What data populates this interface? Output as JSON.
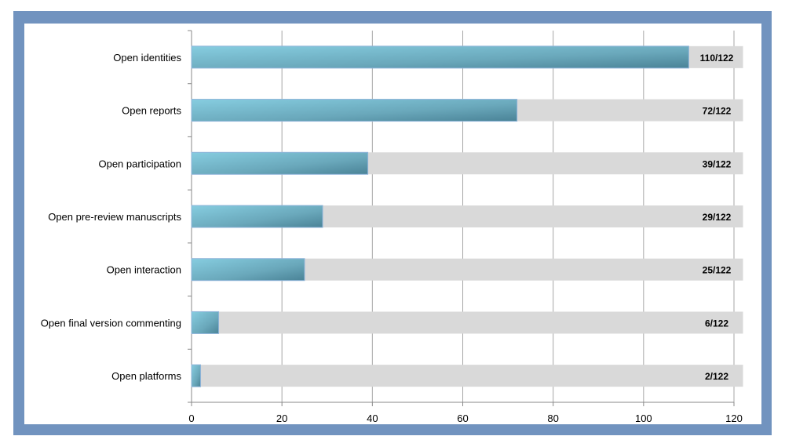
{
  "chart_data": {
    "type": "bar",
    "orientation": "horizontal",
    "title": "",
    "xlabel": "",
    "ylabel": "",
    "categories": [
      "Open identities",
      "Open reports",
      "Open participation",
      "Open pre-review manuscripts",
      "Open interaction",
      "Open final version commenting",
      "Open platforms"
    ],
    "values": [
      110,
      72,
      39,
      29,
      25,
      6,
      2
    ],
    "total": 122,
    "data_labels": [
      "110/122",
      "72/122",
      "39/122",
      "29/122",
      "25/122",
      "6/122",
      "2/122"
    ],
    "xlim": [
      0,
      120
    ],
    "xticks": [
      "0",
      "20",
      "40",
      "60",
      "80",
      "100",
      "120"
    ],
    "xtick_values": [
      0,
      20,
      40,
      60,
      80,
      100,
      120
    ],
    "grid": true,
    "colors": {
      "bar": "#6fb3c8",
      "bar_dark": "#4a8599",
      "background_bar": "#d9d9d9",
      "frame": "#7193bf",
      "grid": "#a6a6a6"
    }
  }
}
